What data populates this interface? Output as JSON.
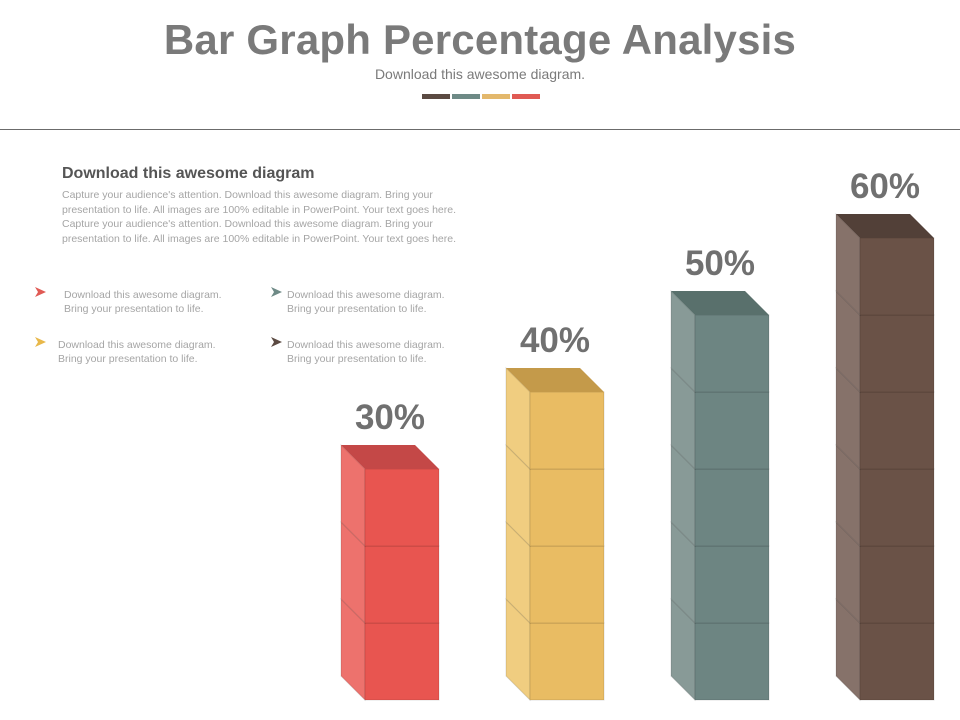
{
  "header": {
    "title": "Bar Graph Percentage Analysis",
    "subtitle": "Download this awesome diagram.",
    "swatch_colors": [
      "#5b4a42",
      "#6e8a86",
      "#e3b86c",
      "#e05a54"
    ]
  },
  "text_block": {
    "heading": "Download this awesome diagram",
    "body": "Capture your audience's attention. Download this awesome diagram. Bring your presentation to life. All images are 100% editable in PowerPoint. Your text goes here. Capture your audience's attention. Download this awesome diagram. Bring your presentation to life. All images are 100% editable in PowerPoint. Your text goes here."
  },
  "bullets": [
    {
      "line1": "Download this awesome diagram.",
      "line2": "Bring your presentation to life.",
      "icon": "arrow-icon",
      "color": "#e05a54"
    },
    {
      "line1": "Download this awesome diagram.",
      "line2": "Bring your presentation to life.",
      "icon": "arrow-icon",
      "color": "#6e8a86"
    },
    {
      "line1": "Download this awesome diagram.",
      "line2": "Bring your presentation to life.",
      "icon": "arrow-icon",
      "color": "#e8b84a"
    },
    {
      "line1": "Download this awesome diagram.",
      "line2": "Bring your presentation to life.",
      "icon": "arrow-icon",
      "color": "#5b4a42"
    }
  ],
  "chart_data": {
    "type": "bar",
    "categories": [
      "",
      "",
      "",
      ""
    ],
    "values": [
      30,
      40,
      50,
      60
    ],
    "data_labels": [
      "30%",
      "40%",
      "50%",
      "60%"
    ],
    "unit": "%",
    "style": "stacked 3D cubes, one cube per 10%",
    "colors": [
      {
        "front": "#e85550",
        "side": "#ed726d",
        "top": "#c44847"
      },
      {
        "front": "#e9bc63",
        "side": "#f0cd80",
        "top": "#c49a4a"
      },
      {
        "front": "#6d8582",
        "side": "#889a97",
        "top": "#59706c"
      },
      {
        "front": "#6a5247",
        "side": "#86726a",
        "top": "#524038"
      }
    ]
  }
}
